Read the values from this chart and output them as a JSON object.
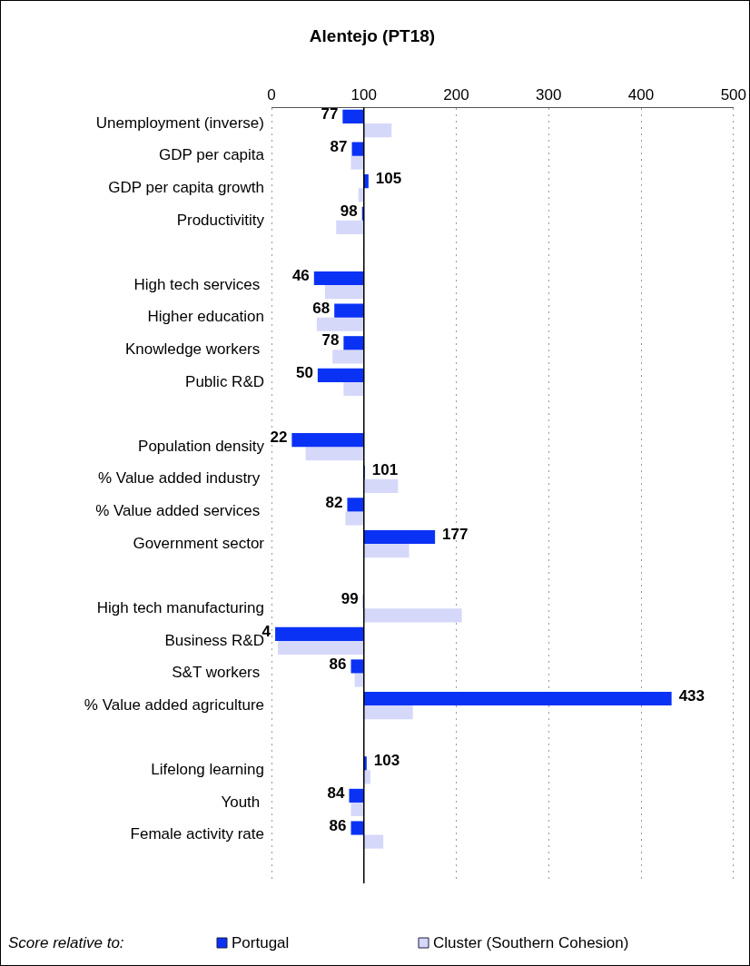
{
  "chart_data": {
    "type": "bar",
    "orientation": "horizontal",
    "title": "Alentejo (PT18)",
    "legend_title": "Score relative to:",
    "categories": [
      "Unemployment (inverse)",
      "GDP per capita",
      "GDP per capita growth",
      "Productivitity",
      null,
      "High tech services ",
      "Higher education",
      "Knowledge workers ",
      "Public R&D",
      null,
      "Population density",
      "% Value added industry ",
      "% Value added services ",
      "Government sector",
      null,
      "High tech manufacturing",
      "Business R&D",
      "S&T workers ",
      "% Value added agriculture",
      null,
      "Lifelong learning",
      "Youth ",
      "Female activity rate",
      null
    ],
    "series": [
      {
        "name": "Portugal",
        "color": "#0a32f5",
        "base": [
          100,
          100,
          100,
          100,
          null,
          100,
          100,
          100,
          100,
          null,
          100,
          100,
          100,
          100,
          null,
          100,
          100,
          100,
          100,
          null,
          100,
          100,
          100,
          null
        ],
        "values": [
          -23,
          -13,
          5,
          -2,
          null,
          -54,
          -32,
          -22,
          -50,
          null,
          -78,
          1,
          -18,
          77,
          null,
          -1,
          -96,
          -14,
          333,
          null,
          3,
          -16,
          -14,
          null
        ],
        "value_labels": [
          "77",
          "87",
          "105",
          "98",
          null,
          "46",
          "68",
          "78",
          "50",
          null,
          "22",
          "101",
          "82",
          "177",
          null,
          "99",
          "4",
          "86",
          "433",
          null,
          "103",
          "84",
          "86",
          null
        ]
      },
      {
        "name": "Cluster (Southern Cohesion)",
        "color": "#d6d8fa",
        "base": [
          100,
          100,
          100,
          100,
          null,
          100,
          100,
          100,
          100,
          null,
          100,
          100,
          100,
          100,
          null,
          100,
          100,
          100,
          100,
          null,
          100,
          100,
          100,
          null
        ],
        "values": [
          30,
          -14,
          -6,
          -30,
          null,
          -42,
          -51,
          -34,
          -22,
          null,
          -63,
          37,
          -20,
          49,
          null,
          106,
          -93,
          -10,
          53,
          null,
          7,
          -14,
          21,
          null
        ]
      }
    ],
    "xlim": [
      0,
      500
    ],
    "xticks": [
      0,
      100,
      200,
      300,
      400,
      500
    ],
    "grid": "x",
    "legend": "bottom",
    "ref_lines": [
      {
        "axis": "x",
        "value": 100,
        "color": "#000000"
      }
    ]
  }
}
